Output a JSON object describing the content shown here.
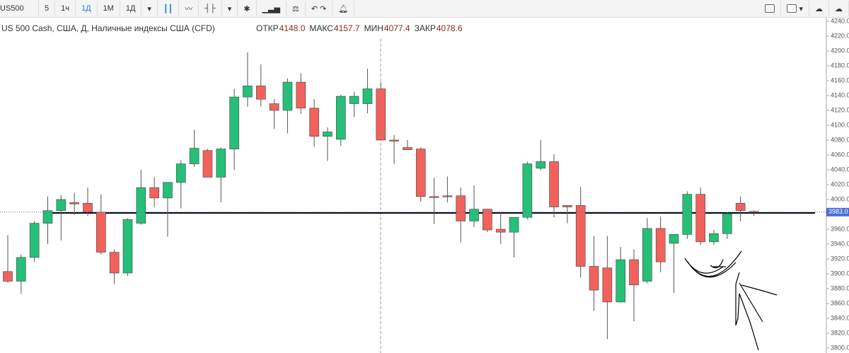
{
  "toolbar": {
    "symbol": "US500",
    "intervals": [
      "5",
      "1ч",
      "1Д",
      "1М",
      "1Д"
    ]
  },
  "header": {
    "title": "US 500 Cash, США, Д, Наличные индексы США (CFD)",
    "ohlc": [
      {
        "label": "ОТКР",
        "value": "4148.0"
      },
      {
        "label": "МАКС",
        "value": "4157.7"
      },
      {
        "label": "МИН",
        "value": "4077.4"
      },
      {
        "label": "ЗАКР",
        "value": "4078.6"
      }
    ]
  },
  "chart_data": {
    "type": "candlestick",
    "up_color": "#26bf77",
    "down_color": "#f2625c",
    "open": [
      3903,
      3890,
      3922,
      3968,
      3985,
      3996,
      3995,
      3983,
      3929,
      3901,
      3968,
      4016,
      4002,
      4023,
      4048,
      4066,
      4030,
      4068,
      4138,
      4153,
      4129,
      4120,
      4158,
      4123,
      4085,
      4081,
      4129,
      4129,
      4149,
      4080,
      4070,
      4068,
      4004,
      4005,
      4005,
      3971,
      3987,
      3960,
      3956,
      3976,
      4042,
      4051,
      3992,
      3992,
      3910,
      3908,
      3862,
      3919,
      3890,
      3961,
      3941,
      3953,
      4007,
      3943,
      3954,
      3995,
      3984
    ],
    "high": [
      3952,
      3926,
      3971,
      4004,
      4006,
      4009,
      4016,
      4007,
      3933,
      3975,
      4040,
      4030,
      4023,
      4053,
      4094,
      4068,
      4070,
      4149,
      4198,
      4182,
      4135,
      4163,
      4170,
      4135,
      4097,
      4141,
      4145,
      4176,
      4158,
      4087,
      4080,
      4070,
      4029,
      4031,
      4016,
      4019,
      3985,
      3983,
      3975,
      4051,
      4080,
      4061,
      3990,
      4017,
      3951,
      3951,
      3936,
      3933,
      3975,
      3977,
      3953,
      4011,
      4016,
      3959,
      3983,
      4004,
      3985
    ],
    "low": [
      3888,
      3873,
      3916,
      3940,
      3945,
      3979,
      3978,
      3926,
      3886,
      3897,
      3966,
      3990,
      3950,
      3988,
      4044,
      4030,
      3996,
      4040,
      4125,
      4125,
      4095,
      4089,
      4115,
      4071,
      4052,
      4072,
      4111,
      4116,
      4080,
      4048,
      4067,
      3997,
      3967,
      3996,
      3942,
      3963,
      3956,
      3940,
      3922,
      3973,
      4039,
      3976,
      3968,
      3895,
      3850,
      3812,
      3861,
      3836,
      3887,
      3902,
      3874,
      3947,
      3939,
      3939,
      3947,
      3971,
      3978
    ],
    "close": [
      3890,
      3922,
      3968,
      3985,
      4000,
      3994,
      3983,
      3929,
      3901,
      3973,
      4016,
      4002,
      4023,
      4048,
      4069,
      4030,
      4068,
      4138,
      4153,
      4135,
      4120,
      4158,
      4123,
      4085,
      4091,
      4139,
      4139,
      4149,
      4080,
      4079,
      4067,
      4004,
      4003,
      4004,
      3971,
      3987,
      3959,
      3956,
      3976,
      4048,
      4051,
      3990,
      3990,
      3910,
      3878,
      3862,
      3919,
      3885,
      3961,
      3916,
      3953,
      4007,
      3943,
      3954,
      3981,
      3985,
      3983
    ],
    "last_price": {
      "value": 3983,
      "label": "3983.0"
    },
    "ylim": [
      3800,
      4240
    ],
    "yticks": [
      {
        "value": 4240,
        "label": "4240.0"
      },
      {
        "value": 4220,
        "label": "4220.0"
      },
      {
        "value": 4200,
        "label": "4200.0"
      },
      {
        "value": 4180,
        "label": "4180.0"
      },
      {
        "value": 4160,
        "label": "4160.0"
      },
      {
        "value": 4140,
        "label": "4140.0"
      },
      {
        "value": 4120,
        "label": "4120.0"
      },
      {
        "value": 4100,
        "label": "4100.0"
      },
      {
        "value": 4080,
        "label": "4080.0"
      },
      {
        "value": 4060,
        "label": "4060.0"
      },
      {
        "value": 4040,
        "label": "4040.0"
      },
      {
        "value": 4020,
        "label": "4020.0"
      },
      {
        "value": 4000,
        "label": "4000.0"
      },
      {
        "value": 3960,
        "label": "3960.0"
      },
      {
        "value": 3940,
        "label": "3940.0"
      },
      {
        "value": 3920,
        "label": "3920.0"
      },
      {
        "value": 3900,
        "label": "3900.0"
      },
      {
        "value": 3880,
        "label": "3880.0"
      },
      {
        "value": 3860,
        "label": "3860.0"
      },
      {
        "value": 3840,
        "label": "3840.0"
      },
      {
        "value": 3820,
        "label": "3820.0"
      },
      {
        "value": 3800,
        "label": "3800.0"
      }
    ]
  }
}
